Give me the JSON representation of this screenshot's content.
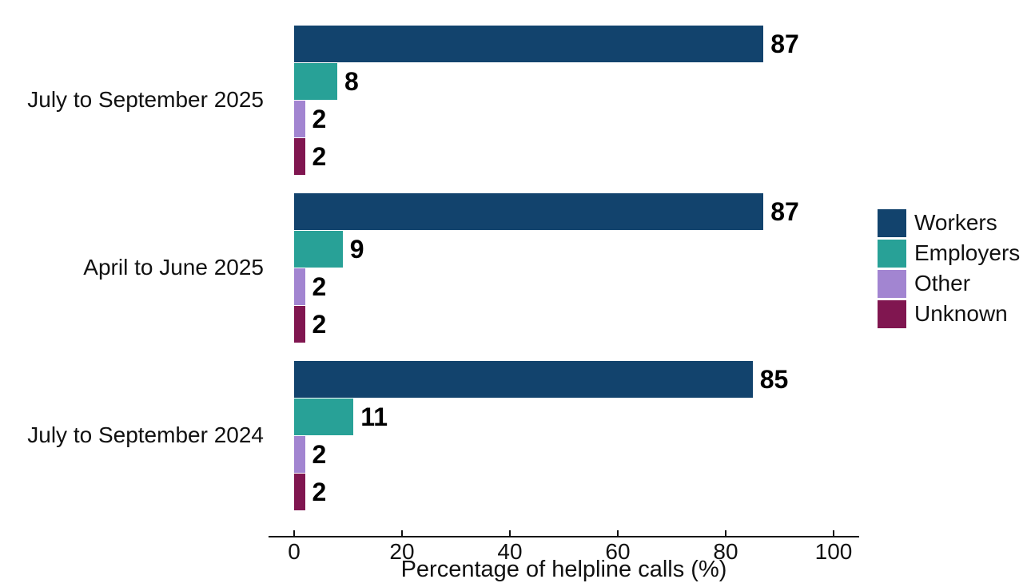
{
  "chart_data": {
    "type": "bar",
    "orientation": "horizontal",
    "title": "",
    "xlabel": "Percentage of helpline calls (%)",
    "ylabel": "",
    "categories": [
      "July to September 2025",
      "April to June 2025",
      "July to September 2024"
    ],
    "series": [
      {
        "name": "Workers",
        "color": "#12436D",
        "values": [
          87,
          87,
          85
        ]
      },
      {
        "name": "Employers",
        "color": "#28A197",
        "values": [
          8,
          9,
          11
        ]
      },
      {
        "name": "Other",
        "color": "#A285D1",
        "values": [
          2,
          2,
          2
        ]
      },
      {
        "name": "Unknown",
        "color": "#801650",
        "values": [
          2,
          2,
          2
        ]
      }
    ],
    "x_ticks": [
      0,
      20,
      40,
      60,
      80,
      100
    ],
    "xlim": [
      0,
      100
    ],
    "grid": false,
    "legend_position": "right",
    "value_labels_shown": true,
    "axis_color": "#111111",
    "text_color": "#111111"
  }
}
